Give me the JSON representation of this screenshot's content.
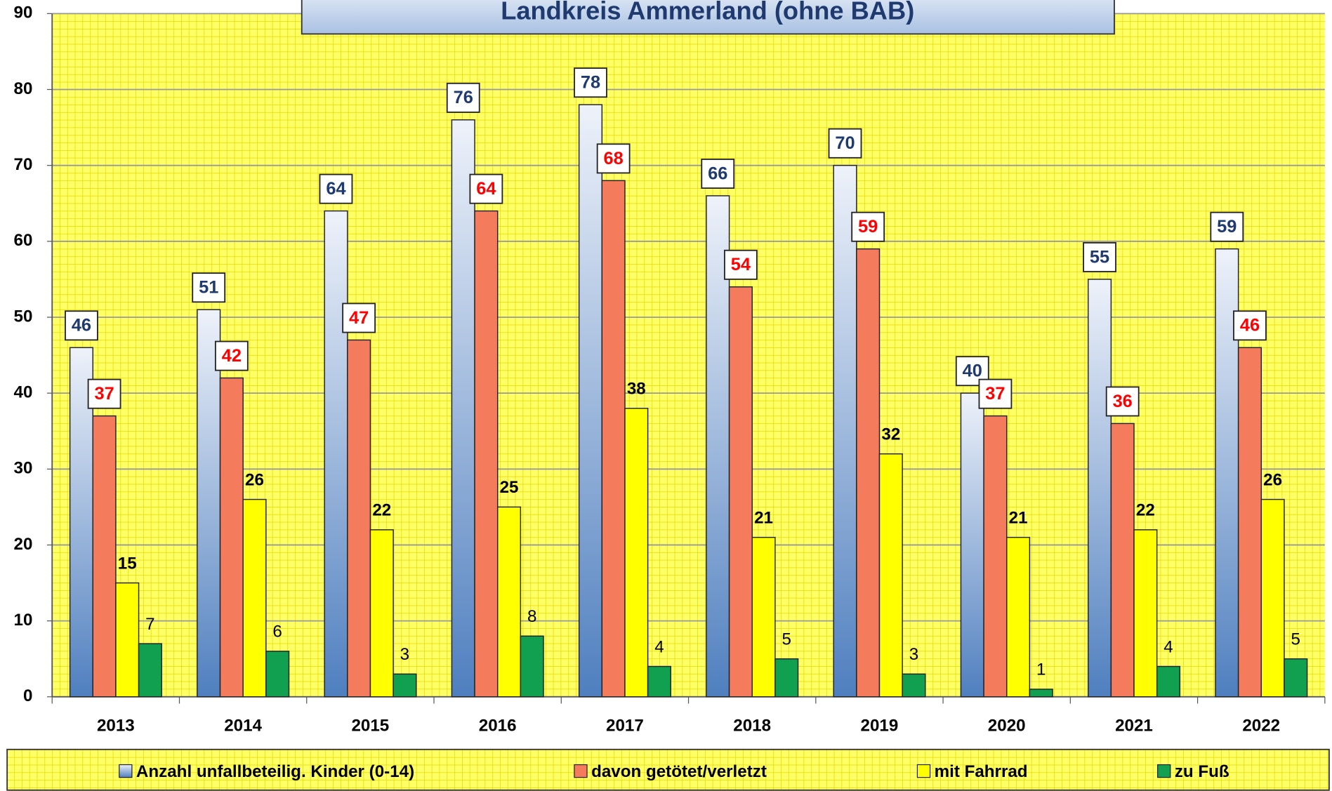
{
  "chart_data": {
    "type": "bar",
    "title": "Landkreis Ammerland (ohne BAB)",
    "categories": [
      "2013",
      "2014",
      "2015",
      "2016",
      "2017",
      "2018",
      "2019",
      "2020",
      "2021",
      "2022"
    ],
    "series": [
      {
        "name": "Anzahl unfallbeteilig. Kinder (0-14)",
        "color": "#4f7fbf",
        "values": [
          46,
          51,
          64,
          76,
          78,
          66,
          70,
          40,
          55,
          59
        ]
      },
      {
        "name": "davon getötet/verletzt",
        "color": "#f47c5c",
        "values": [
          37,
          42,
          47,
          64,
          68,
          54,
          59,
          37,
          36,
          46
        ]
      },
      {
        "name": "mit Fahrrad",
        "color": "#ffff00",
        "values": [
          15,
          26,
          22,
          25,
          38,
          21,
          32,
          21,
          22,
          26
        ]
      },
      {
        "name": "zu Fuß",
        "color": "#10a050",
        "values": [
          7,
          6,
          3,
          8,
          4,
          5,
          3,
          1,
          4,
          5
        ]
      }
    ],
    "ylim": [
      0,
      90
    ],
    "yticks": [
      0,
      10,
      20,
      30,
      40,
      50,
      60,
      70,
      80,
      90
    ],
    "grid": true,
    "legend": "bottom"
  }
}
